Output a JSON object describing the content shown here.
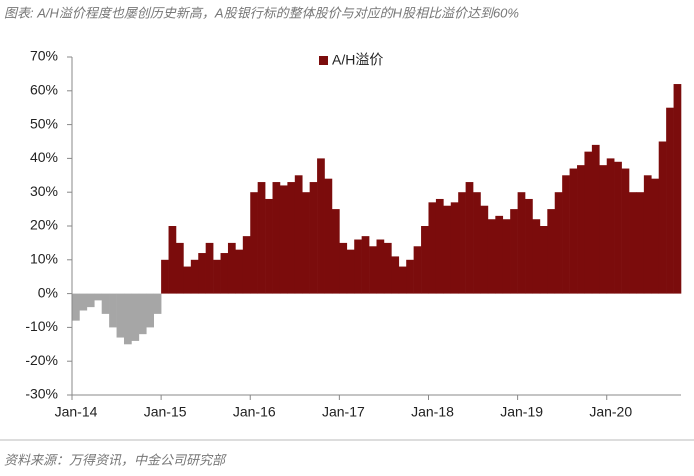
{
  "title": "图表: A/H溢价程度也屡创历史新高，A股银行标的整体股价与对应的H股相比溢价达到60%",
  "source": "资料来源：万得资讯，中金公司研究部",
  "chart_data": {
    "type": "bar",
    "categories": [
      "Jan-14",
      null,
      null,
      null,
      null,
      null,
      null,
      null,
      null,
      null,
      null,
      null,
      "Jan-15",
      null,
      null,
      null,
      null,
      null,
      null,
      null,
      null,
      null,
      null,
      null,
      "Jan-16",
      null,
      null,
      null,
      null,
      null,
      null,
      null,
      null,
      null,
      null,
      null,
      "Jan-17",
      null,
      null,
      null,
      null,
      null,
      null,
      null,
      null,
      null,
      null,
      null,
      "Jan-18",
      null,
      null,
      null,
      null,
      null,
      null,
      null,
      null,
      null,
      null,
      null,
      "Jan-19",
      null,
      null,
      null,
      null,
      null,
      null,
      null,
      null,
      null,
      null,
      null,
      "Jan-20",
      null,
      null,
      null,
      null,
      null,
      null,
      null,
      null,
      null
    ],
    "series": [
      {
        "name": "A/H溢价",
        "color": "#7b0c0c",
        "negative_color": "#a6a6a6",
        "values": [
          -8,
          -5,
          -4,
          -2,
          -6,
          -10,
          -13,
          -15,
          -14,
          -12,
          -10,
          -6,
          10,
          20,
          15,
          8,
          10,
          12,
          15,
          10,
          12,
          15,
          13,
          17,
          30,
          33,
          28,
          33,
          32,
          33,
          35,
          30,
          33,
          40,
          34,
          25,
          15,
          13,
          16,
          17,
          14,
          16,
          15,
          11,
          8,
          10,
          14,
          20,
          27,
          28,
          26,
          27,
          30,
          33,
          30,
          26,
          22,
          23,
          22,
          25,
          30,
          28,
          22,
          20,
          25,
          30,
          35,
          37,
          38,
          42,
          44,
          38,
          40,
          39,
          37,
          30,
          30,
          35,
          34,
          45,
          55,
          62
        ]
      }
    ],
    "ylim": [
      -30,
      70
    ],
    "yticks": [
      {
        "value": -30,
        "label": "-30%"
      },
      {
        "value": -20,
        "label": "-20%"
      },
      {
        "value": -10,
        "label": "-10%"
      },
      {
        "value": 0,
        "label": "0%"
      },
      {
        "value": 10,
        "label": "10%"
      },
      {
        "value": 20,
        "label": "20%"
      },
      {
        "value": 30,
        "label": "30%"
      },
      {
        "value": 40,
        "label": "40%"
      },
      {
        "value": 50,
        "label": "50%"
      },
      {
        "value": 60,
        "label": "60%"
      },
      {
        "value": 70,
        "label": "70%"
      }
    ],
    "grid": false
  }
}
